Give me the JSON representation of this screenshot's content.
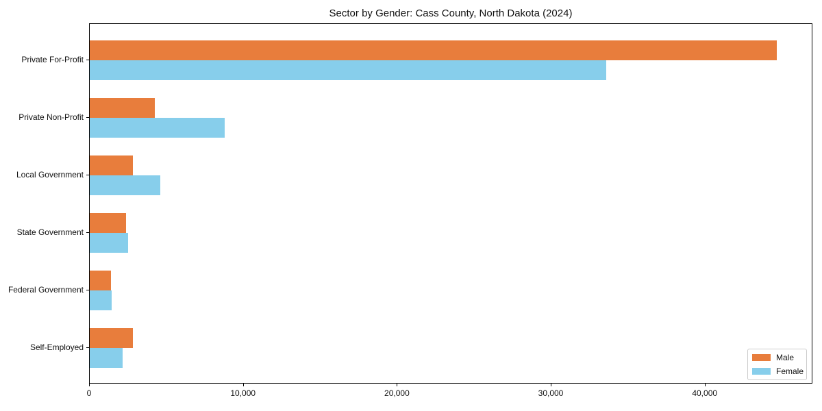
{
  "chart_data": {
    "type": "bar",
    "orientation": "horizontal",
    "title": "Sector by Gender: Cass County, North Dakota (2024)",
    "categories": [
      "Private For-Profit",
      "Private Non-Profit",
      "Local Government",
      "State Government",
      "Federal Government",
      "Self-Employed"
    ],
    "series": [
      {
        "name": "Male",
        "color": "#e87d3c",
        "values": [
          44650,
          4220,
          2790,
          2340,
          1380,
          2810
        ]
      },
      {
        "name": "Female",
        "color": "#87ceeb",
        "values": [
          33550,
          8760,
          4560,
          2490,
          1420,
          2150
        ]
      }
    ],
    "xlabel": "",
    "ylabel": "",
    "xlim": [
      0,
      47000
    ],
    "xticks": [
      0,
      10000,
      20000,
      30000,
      40000
    ],
    "xtick_labels": [
      "0",
      "10,000",
      "20,000",
      "30,000",
      "40,000"
    ],
    "grid": false,
    "legend_position": "lower right",
    "background_color": "#ffffff",
    "axis_color": "#000000"
  }
}
